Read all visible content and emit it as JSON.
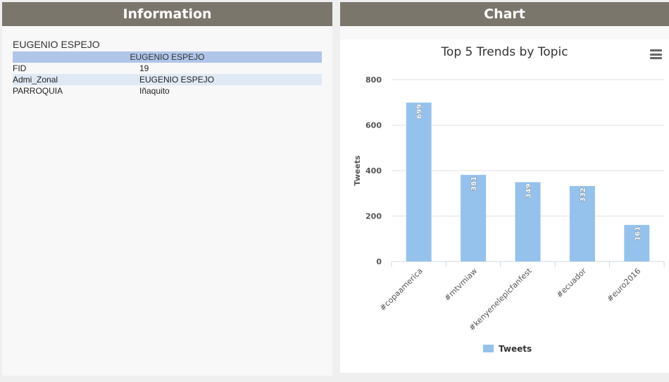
{
  "info": {
    "header": "Information",
    "title": "EUGENIO ESPEJO",
    "caption": "EUGENIO ESPEJO",
    "rows": [
      {
        "key": "FID",
        "value": "19"
      },
      {
        "key": "Admi_Zonal",
        "value": "EUGENIO ESPEJO"
      },
      {
        "key": "PARROQUIA",
        "value": "Iñaquito"
      }
    ]
  },
  "chart_panel": {
    "header": "Chart"
  },
  "chart_data": {
    "type": "bar",
    "title": "Top 5 Trends by Topic",
    "xlabel": "",
    "ylabel": "Tweets",
    "categories": [
      "#copaamerica",
      "#mtvmiaw",
      "#kenyenelepicfanfest",
      "#ecuador",
      "#euro2016"
    ],
    "series": [
      {
        "name": "Tweets",
        "values": [
          699,
          381,
          349,
          332,
          161
        ],
        "color": "#95c2ed"
      }
    ],
    "ylim": [
      0,
      800
    ],
    "yticks": [
      0,
      200,
      400,
      600,
      800
    ],
    "grid": true,
    "legend": "bottom",
    "data_labels": true
  }
}
